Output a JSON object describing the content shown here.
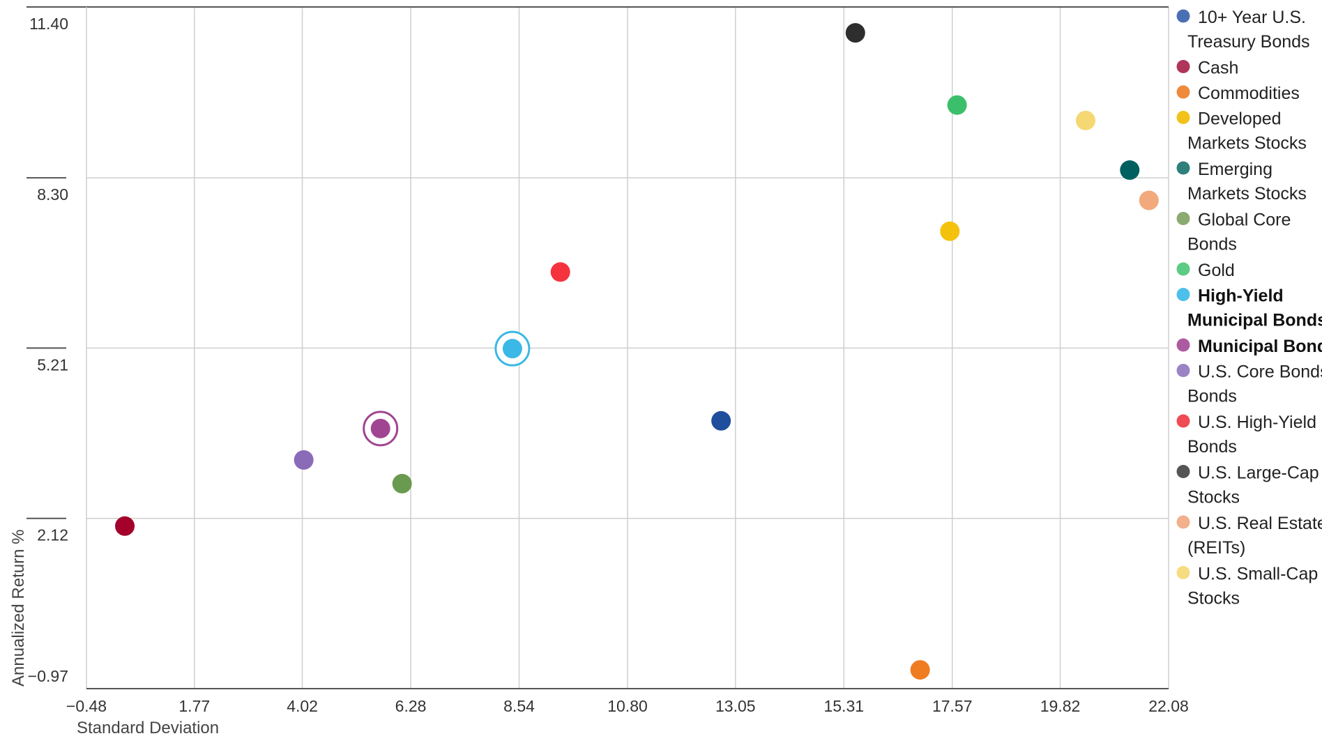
{
  "chart_data": {
    "type": "scatter",
    "title": "",
    "xlabel": "Standard Deviation",
    "ylabel": "Annualized Return %",
    "xlim": [
      -0.48,
      22.08
    ],
    "ylim": [
      -0.97,
      11.4
    ],
    "x_ticks": [
      "−0.48",
      "1.77",
      "4.02",
      "6.28",
      "8.54",
      "10.80",
      "13.05",
      "15.31",
      "17.57",
      "19.82",
      "22.08"
    ],
    "x_tick_values": [
      -0.48,
      1.77,
      4.02,
      6.28,
      8.54,
      10.8,
      13.05,
      15.31,
      17.57,
      19.82,
      22.08
    ],
    "y_ticks": [
      "11.40",
      "8.30",
      "5.21",
      "2.12",
      "−0.97"
    ],
    "y_tick_values": [
      11.4,
      8.3,
      5.21,
      2.12,
      -0.97
    ],
    "grid": true,
    "legend_position": "right",
    "series": [
      {
        "name": "10+ Year U.S. Treasury Bonds",
        "legend_lines": [
          "10+ Year U.S.",
          "Treasury Bonds"
        ],
        "color": "#1f4e9c",
        "legend_color": "#4a6fb5",
        "x": 12.75,
        "y": 3.89,
        "highlight": false
      },
      {
        "name": "Cash",
        "legend_lines": [
          "Cash"
        ],
        "color": "#a3002b",
        "legend_color": "#b0355a",
        "x": 0.32,
        "y": 1.98,
        "highlight": false
      },
      {
        "name": "Commodities",
        "legend_lines": [
          "Commodities"
        ],
        "color": "#f07c22",
        "legend_color": "#ef8a3c",
        "x": 16.9,
        "y": -0.63,
        "highlight": false
      },
      {
        "name": "Developed Markets Stocks",
        "legend_lines": [
          "Developed",
          "Markets Stocks"
        ],
        "color": "#f4c20d",
        "legend_color": "#f2c21b",
        "x": 17.52,
        "y": 7.33,
        "highlight": false
      },
      {
        "name": "Emerging Markets Stocks",
        "legend_lines": [
          "Emerging",
          "Markets Stocks"
        ],
        "color": "#00605f",
        "legend_color": "#2f7f7d",
        "x": 21.27,
        "y": 8.44,
        "highlight": false
      },
      {
        "name": "Global Core Bonds",
        "legend_lines": [
          "Global Core",
          "Bonds"
        ],
        "color": "#6a9a50",
        "legend_color": "#8aaa72",
        "x": 6.1,
        "y": 2.75,
        "highlight": false
      },
      {
        "name": "Gold",
        "legend_lines": [
          "Gold"
        ],
        "color": "#3cbf6b",
        "legend_color": "#5ccb84",
        "x": 17.67,
        "y": 9.62,
        "highlight": false
      },
      {
        "name": "High-Yield Municipal Bonds",
        "legend_lines": [
          "High-Yield",
          "Municipal Bonds"
        ],
        "color": "#3bb8e6",
        "legend_color": "#4cc0ea",
        "x": 8.4,
        "y": 5.2,
        "highlight": true
      },
      {
        "name": "Municipal Bonds",
        "legend_lines": [
          "Municipal Bonds"
        ],
        "color": "#a04591",
        "legend_color": "#ad5ba0",
        "x": 5.65,
        "y": 3.75,
        "highlight": true
      },
      {
        "name": "U.S. Core Bonds Bonds",
        "legend_lines": [
          "U.S. Core Bonds",
          "Bonds"
        ],
        "color": "#8a6bb8",
        "legend_color": "#9a84c4",
        "x": 4.05,
        "y": 3.18,
        "highlight": false
      },
      {
        "name": "U.S. High-Yield Bonds",
        "legend_lines": [
          "U.S. High-Yield",
          "Bonds"
        ],
        "color": "#f5333f",
        "legend_color": "#f04a54",
        "x": 9.4,
        "y": 6.59,
        "highlight": false
      },
      {
        "name": "U.S. Large-Cap Stocks",
        "legend_lines": [
          "U.S. Large-Cap",
          "Stocks"
        ],
        "color": "#2e2e2e",
        "legend_color": "#555555",
        "x": 15.55,
        "y": 10.93,
        "highlight": false
      },
      {
        "name": "U.S. Real Estate (REITs)",
        "legend_lines": [
          "U.S. Real Estate",
          "(REITs)"
        ],
        "color": "#f2a97c",
        "legend_color": "#f2b08c",
        "x": 21.67,
        "y": 7.89,
        "highlight": false
      },
      {
        "name": "U.S. Small-Cap Stocks",
        "legend_lines": [
          "U.S. Small-Cap",
          "Stocks"
        ],
        "color": "#f5d872",
        "legend_color": "#f5dc80",
        "x": 20.35,
        "y": 9.34,
        "highlight": false
      }
    ]
  }
}
